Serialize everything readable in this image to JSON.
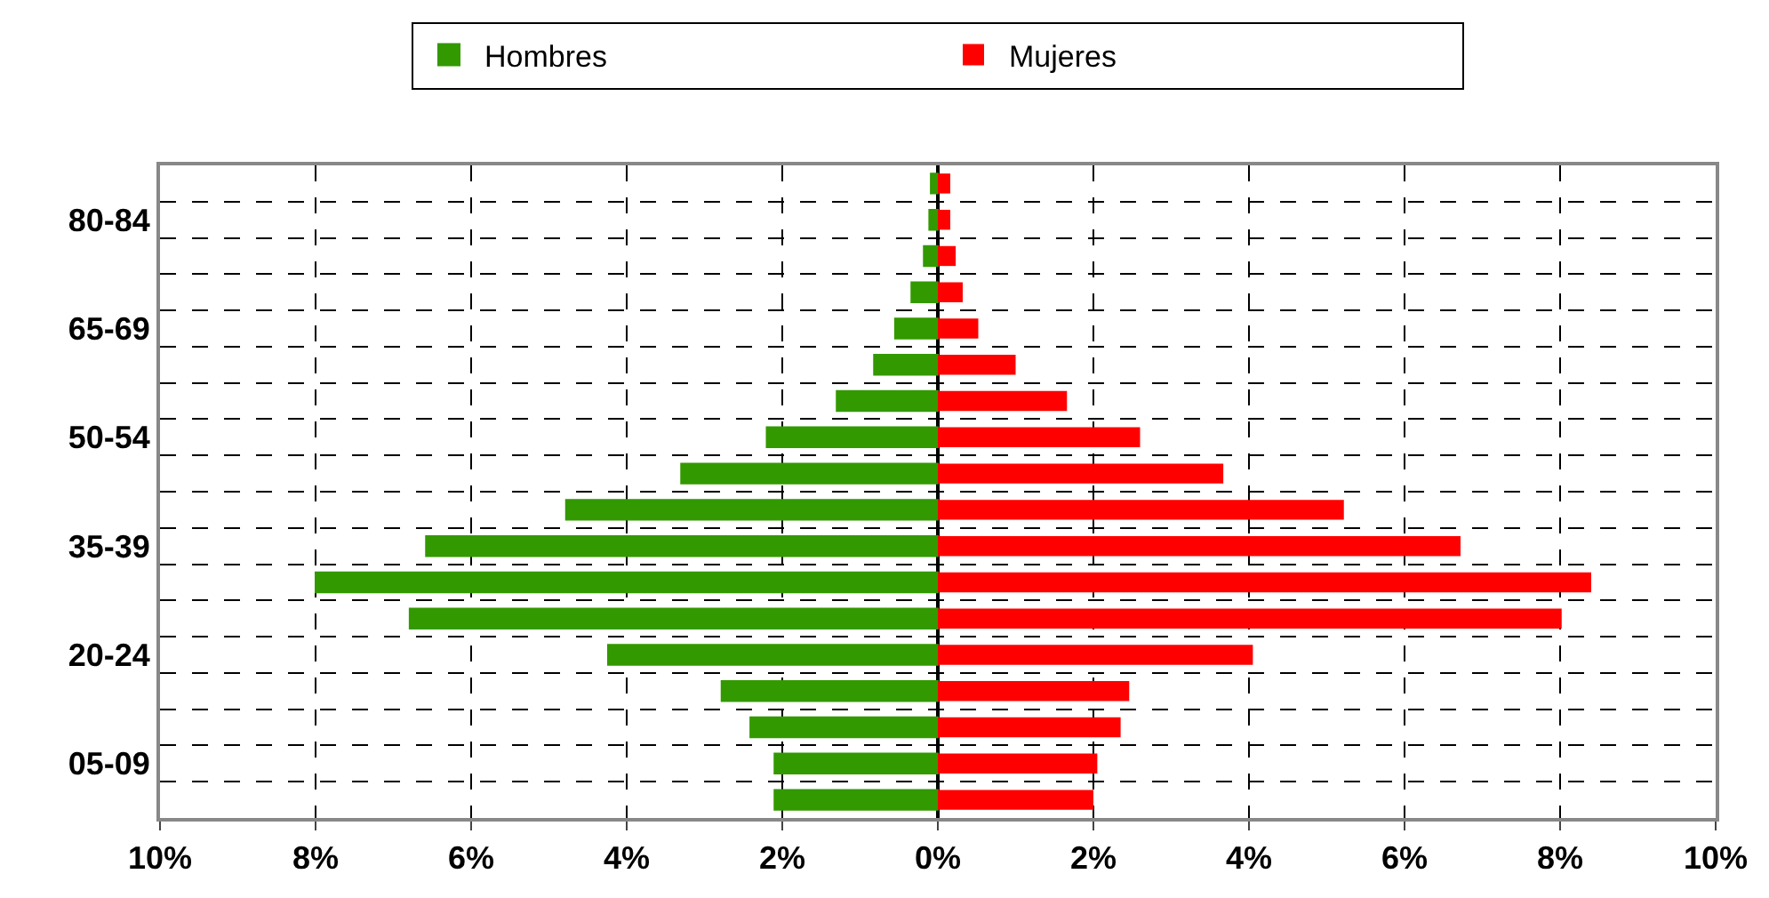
{
  "chart_data": {
    "type": "bar",
    "orientation": "horizontal",
    "categories": [
      null,
      "80-84",
      null,
      null,
      "65-69",
      null,
      null,
      "50-54",
      null,
      null,
      "35-39",
      null,
      null,
      "20-24",
      null,
      null,
      "05-09",
      null
    ],
    "series": [
      {
        "name": "Hombres",
        "color": "#339900",
        "values": [
          -0.09,
          -0.11,
          -0.18,
          -0.34,
          -0.55,
          -0.82,
          -1.3,
          -2.2,
          -3.3,
          -4.78,
          -6.58,
          -8.0,
          -6.79,
          -4.24,
          -2.78,
          -2.41,
          -2.1,
          -2.1
        ]
      },
      {
        "name": "Mujeres",
        "color": "#ff0000",
        "values": [
          0.16,
          0.16,
          0.23,
          0.32,
          0.52,
          1.0,
          1.66,
          2.6,
          3.67,
          5.22,
          6.72,
          8.4,
          8.02,
          4.05,
          2.46,
          2.35,
          2.05,
          2.0
        ]
      }
    ],
    "xlim": [
      -10,
      10
    ],
    "xticks": [
      {
        "value": -10,
        "label": "10%"
      },
      {
        "value": -8,
        "label": "8%"
      },
      {
        "value": -6,
        "label": "6%"
      },
      {
        "value": -4,
        "label": "4%"
      },
      {
        "value": -2,
        "label": "2%"
      },
      {
        "value": 0,
        "label": "0%"
      },
      {
        "value": 2,
        "label": "2%"
      },
      {
        "value": 4,
        "label": "4%"
      },
      {
        "value": 6,
        "label": "6%"
      },
      {
        "value": 8,
        "label": "8%"
      },
      {
        "value": 10,
        "label": "10%"
      }
    ],
    "grid": true,
    "legend": "top",
    "stacked": true
  }
}
